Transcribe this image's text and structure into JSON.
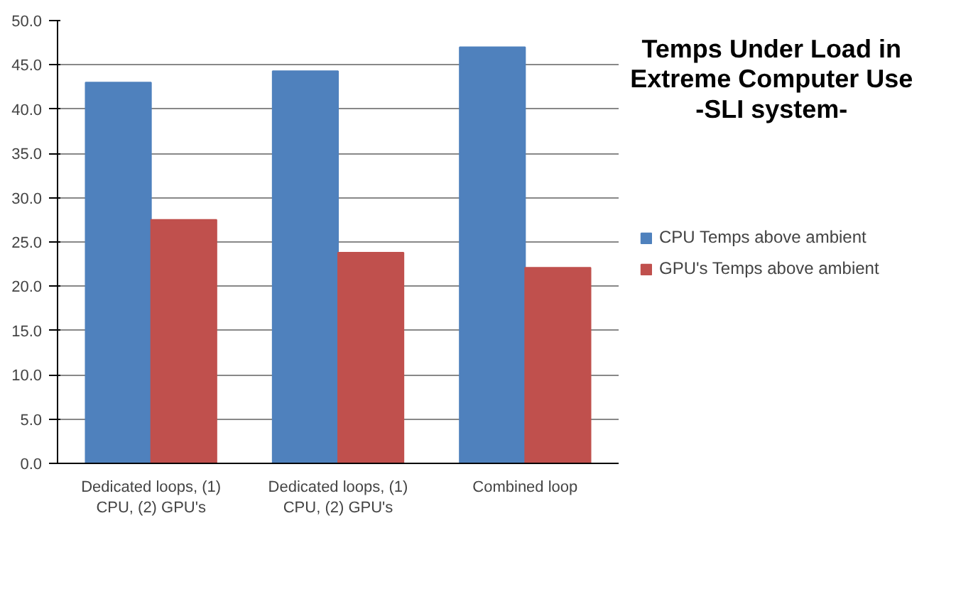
{
  "chart_data": {
    "type": "bar",
    "title": "Temps Under Load in Extreme Computer Use -SLI system-",
    "categories": [
      "Dedicated loops, (1) CPU, (2) GPU's",
      "Dedicated loops, (1) CPU, (2) GPU's",
      "Combined loop"
    ],
    "series": [
      {
        "name": "CPU Temps above ambient",
        "color": "#4f81bd",
        "values": [
          43.0,
          44.3,
          47.0
        ]
      },
      {
        "name": "GPU's Temps above ambient",
        "color": "#c0504d",
        "values": [
          27.5,
          23.8,
          22.1
        ]
      }
    ],
    "ylim": [
      0,
      50
    ],
    "yticks": [
      {
        "value": 0,
        "label": "0.0"
      },
      {
        "value": 5,
        "label": "5.0"
      },
      {
        "value": 10,
        "label": "10.0"
      },
      {
        "value": 15,
        "label": "15.0"
      },
      {
        "value": 20,
        "label": "20.0"
      },
      {
        "value": 25,
        "label": "25.0"
      },
      {
        "value": 30,
        "label": "30.0"
      },
      {
        "value": 35,
        "label": "35.0"
      },
      {
        "value": 40,
        "label": "40.0"
      },
      {
        "value": 45,
        "label": "45.0"
      },
      {
        "value": 50,
        "label": "50.0"
      }
    ],
    "grid": "y",
    "legend": "right"
  }
}
